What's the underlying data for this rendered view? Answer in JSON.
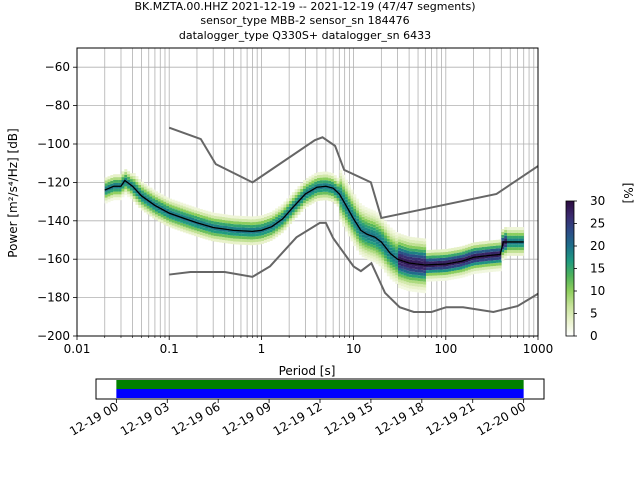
{
  "chart_data": [
    {
      "type": "heatmap",
      "title_lines": [
        "BK.MZTA.00.HHZ   2021-12-19 -- 2021-12-19  (47/47 segments)",
        "sensor_type MBB-2 sensor_sn 184476",
        "datalogger_type Q330S+ datalogger_sn 6433"
      ],
      "xlabel": "Period [s]",
      "ylabel": "Power [m²/s⁴/Hz] [dB]",
      "x_scale": "log",
      "xlim": [
        0.01,
        1000
      ],
      "ylim": [
        -200,
        -50
      ],
      "x_ticks": [
        0.01,
        0.1,
        1,
        10,
        100,
        1000
      ],
      "x_tick_labels": [
        "0.01",
        "0.1",
        "1",
        "10",
        "100",
        "1000"
      ],
      "y_ticks": [
        -200,
        -180,
        -160,
        -140,
        -120,
        -100,
        -80,
        -60
      ],
      "y_tick_labels": [
        "−200",
        "−180",
        "−160",
        "−140",
        "−120",
        "−100",
        "−80",
        "−60"
      ],
      "grid": true,
      "colorbar": {
        "label": "[%]",
        "min": 0,
        "max": 30,
        "ticks": [
          0,
          5,
          10,
          15,
          20,
          25,
          30
        ],
        "tick_labels": [
          "0",
          "5",
          "10",
          "15",
          "20",
          "25",
          "30"
        ],
        "colormap": [
          "#ffffff",
          "#e9f2cc",
          "#c7e39a",
          "#8fcf5d",
          "#4fb25a",
          "#1f9a80",
          "#1e6f8a",
          "#2d4b86",
          "#3a2a6e",
          "#2b0b3f"
        ]
      },
      "high_noise_model": [
        {
          "x": 0.1,
          "y": -91.5
        },
        {
          "x": 0.22,
          "y": -97.4
        },
        {
          "x": 0.32,
          "y": -110.5
        },
        {
          "x": 0.8,
          "y": -120.0
        },
        {
          "x": 3.8,
          "y": -98.0
        },
        {
          "x": 4.6,
          "y": -96.5
        },
        {
          "x": 6.3,
          "y": -101.0
        },
        {
          "x": 7.9,
          "y": -113.5
        },
        {
          "x": 15.4,
          "y": -120.0
        },
        {
          "x": 20.0,
          "y": -138.5
        },
        {
          "x": 354.8,
          "y": -126.0
        },
        {
          "x": 1000,
          "y": -111.5
        }
      ],
      "low_noise_model": [
        {
          "x": 0.1,
          "y": -168.0
        },
        {
          "x": 0.17,
          "y": -166.7
        },
        {
          "x": 0.4,
          "y": -166.7
        },
        {
          "x": 0.8,
          "y": -169.2
        },
        {
          "x": 1.24,
          "y": -163.7
        },
        {
          "x": 2.4,
          "y": -148.6
        },
        {
          "x": 4.3,
          "y": -141.1
        },
        {
          "x": 5.0,
          "y": -141.1
        },
        {
          "x": 6.0,
          "y": -149.0
        },
        {
          "x": 10.0,
          "y": -163.8
        },
        {
          "x": 12.0,
          "y": -166.2
        },
        {
          "x": 15.6,
          "y": -162.1
        },
        {
          "x": 21.9,
          "y": -177.5
        },
        {
          "x": 31.6,
          "y": -185.0
        },
        {
          "x": 45.0,
          "y": -187.5
        },
        {
          "x": 70.0,
          "y": -187.5
        },
        {
          "x": 101.0,
          "y": -185.0
        },
        {
          "x": 154.0,
          "y": -185.0
        },
        {
          "x": 328.0,
          "y": -187.5
        },
        {
          "x": 600.0,
          "y": -184.4
        },
        {
          "x": 1000.0,
          "y": -178.0
        }
      ],
      "mode_curve": [
        {
          "x": 0.02,
          "y": -124
        },
        {
          "x": 0.025,
          "y": -122
        },
        {
          "x": 0.03,
          "y": -122
        },
        {
          "x": 0.033,
          "y": -119
        },
        {
          "x": 0.04,
          "y": -122
        },
        {
          "x": 0.05,
          "y": -127
        },
        {
          "x": 0.07,
          "y": -132
        },
        {
          "x": 0.1,
          "y": -136
        },
        {
          "x": 0.15,
          "y": -139
        },
        {
          "x": 0.2,
          "y": -141
        },
        {
          "x": 0.3,
          "y": -143.5
        },
        {
          "x": 0.5,
          "y": -145
        },
        {
          "x": 0.8,
          "y": -145.5
        },
        {
          "x": 1.0,
          "y": -145
        },
        {
          "x": 1.3,
          "y": -143
        },
        {
          "x": 1.7,
          "y": -139
        },
        {
          "x": 2.2,
          "y": -133
        },
        {
          "x": 3.0,
          "y": -126
        },
        {
          "x": 4.0,
          "y": -122.5
        },
        {
          "x": 5.0,
          "y": -122
        },
        {
          "x": 6.0,
          "y": -123
        },
        {
          "x": 7.0,
          "y": -126
        },
        {
          "x": 8.5,
          "y": -133
        },
        {
          "x": 10.0,
          "y": -139
        },
        {
          "x": 12.0,
          "y": -145
        },
        {
          "x": 14.0,
          "y": -147
        },
        {
          "x": 17.0,
          "y": -148.5
        },
        {
          "x": 20.0,
          "y": -151
        },
        {
          "x": 25.0,
          "y": -157
        },
        {
          "x": 30.0,
          "y": -160
        },
        {
          "x": 40.0,
          "y": -162
        },
        {
          "x": 60.0,
          "y": -163
        },
        {
          "x": 100.0,
          "y": -162.5
        },
        {
          "x": 150.0,
          "y": -161
        },
        {
          "x": 200.0,
          "y": -159
        },
        {
          "x": 300.0,
          "y": -158
        },
        {
          "x": 390.0,
          "y": -157.5
        },
        {
          "x": 420.0,
          "y": -151
        },
        {
          "x": 700.0,
          "y": -151
        }
      ]
    },
    {
      "type": "timeline",
      "x_tick_labels": [
        "12-19 00",
        "12-19 03",
        "12-19 06",
        "12-19 09",
        "12-19 12",
        "12-19 15",
        "12-19 18",
        "12-19 21",
        "12-20 00"
      ],
      "x_tick_hours": [
        0,
        3,
        6,
        9,
        12,
        15,
        18,
        21,
        24
      ],
      "xlim_hours": [
        -1.2,
        25.2
      ],
      "coverage_hours": [
        0,
        24
      ],
      "bars": [
        {
          "color": "#008000"
        },
        {
          "color": "#0000ff"
        }
      ]
    }
  ]
}
